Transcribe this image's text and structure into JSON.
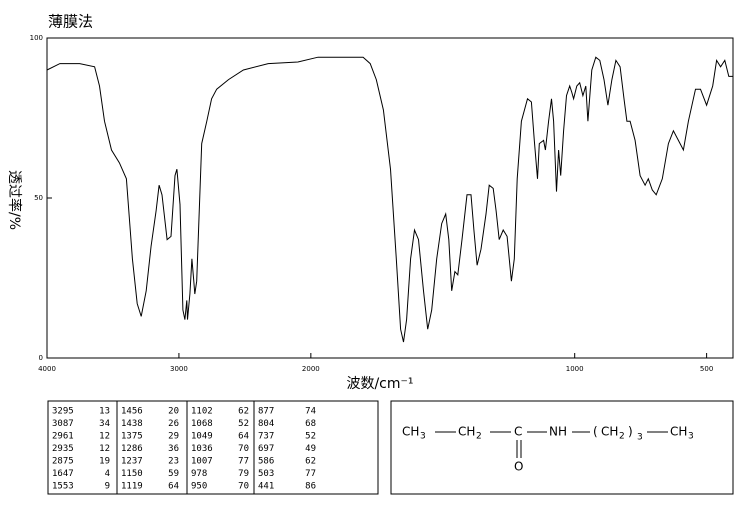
{
  "chart_data": {
    "type": "line",
    "title": "薄膜法",
    "x_label": "波数/cm⁻¹",
    "y_label": "透过率/%",
    "xlim": [
      4000,
      400
    ],
    "ylim": [
      0,
      100
    ],
    "xticks": [
      4000,
      3000,
      2000,
      1000,
      500
    ],
    "yticks": [
      0,
      50,
      100
    ],
    "x_scale_break": 2000,
    "x_scale_ratio_below_break": 2,
    "grid": false,
    "series": [
      {
        "name": "spectrum",
        "color": "#000000",
        "x": [
          4000,
          3902,
          3752,
          3639,
          3602,
          3564,
          3511,
          3451,
          3398,
          3353,
          3316,
          3286,
          3248,
          3211,
          3173,
          3150,
          3128,
          3090,
          3060,
          3030,
          3015,
          2992,
          2970,
          2955,
          2940,
          2935,
          2917,
          2902,
          2887,
          2880,
          2865,
          2827,
          2789,
          2752,
          2714,
          2624,
          2511,
          2323,
          2098,
          1973,
          1878,
          1802,
          1775,
          1752,
          1725,
          1698,
          1676,
          1660,
          1649,
          1637,
          1622,
          1607,
          1592,
          1573,
          1557,
          1542,
          1523,
          1504,
          1489,
          1477,
          1466,
          1454,
          1443,
          1427,
          1408,
          1393,
          1382,
          1370,
          1355,
          1336,
          1324,
          1309,
          1298,
          1286,
          1271,
          1256,
          1240,
          1229,
          1218,
          1202,
          1179,
          1164,
          1153,
          1141,
          1134,
          1118,
          1111,
          1099,
          1088,
          1080,
          1069,
          1061,
          1053,
          1042,
          1031,
          1019,
          1011,
          1004,
          992,
          981,
          969,
          958,
          950,
          935,
          920,
          905,
          889,
          874,
          859,
          844,
          828,
          813,
          802,
          790,
          771,
          752,
          733,
          721,
          706,
          691,
          668,
          645,
          626,
          607,
          588,
          569,
          542,
          523,
          500,
          477,
          462,
          447,
          431,
          416,
          400
        ],
        "values": [
          90,
          92,
          92,
          91,
          85,
          74,
          65,
          61,
          56,
          31,
          17,
          13,
          21,
          35,
          46,
          54,
          51,
          37,
          38,
          57,
          59,
          48,
          15,
          12,
          18,
          12,
          20,
          31,
          24,
          20,
          24,
          67,
          74,
          81,
          84,
          87,
          90,
          92,
          92.5,
          94,
          94,
          94,
          92,
          87,
          77.5,
          59,
          31,
          9,
          5,
          12,
          31,
          40,
          37,
          21,
          9,
          15,
          31,
          42,
          45,
          37,
          21,
          27,
          26,
          37,
          51,
          51,
          40,
          29,
          34,
          45,
          54,
          53,
          46,
          37,
          40,
          38,
          24,
          31,
          56,
          74,
          81,
          80,
          68,
          56,
          67,
          68,
          65,
          74,
          81,
          74,
          52,
          65,
          57,
          71,
          82,
          85,
          83,
          81,
          85,
          86,
          82,
          85,
          74,
          90,
          94,
          93,
          87,
          79,
          87,
          93,
          91,
          81,
          74,
          74,
          68,
          57,
          54,
          56,
          52.5,
          51,
          56,
          67,
          71,
          68,
          65,
          74,
          84,
          84,
          79,
          85,
          93,
          91,
          93,
          88,
          88
        ]
      }
    ]
  },
  "peak_table": [
    [
      [
        3295,
        13
      ],
      [
        3087,
        34
      ],
      [
        2961,
        12
      ],
      [
        2935,
        12
      ],
      [
        2875,
        19
      ],
      [
        1647,
        4
      ],
      [
        1553,
        9
      ]
    ],
    [
      [
        1456,
        20
      ],
      [
        1438,
        26
      ],
      [
        1375,
        29
      ],
      [
        1286,
        36
      ],
      [
        1237,
        23
      ],
      [
        1150,
        59
      ],
      [
        1119,
        64
      ]
    ],
    [
      [
        1102,
        62
      ],
      [
        1068,
        52
      ],
      [
        1049,
        64
      ],
      [
        1036,
        70
      ],
      [
        1007,
        77
      ],
      [
        978,
        79
      ],
      [
        950,
        70
      ]
    ],
    [
      [
        877,
        74
      ],
      [
        804,
        68
      ],
      [
        737,
        52
      ],
      [
        697,
        49
      ],
      [
        586,
        62
      ],
      [
        503,
        77
      ],
      [
        441,
        86
      ]
    ]
  ],
  "structure": {
    "atoms": [
      "CH",
      "3",
      "CH",
      "2",
      "C",
      "NH",
      "(",
      "CH",
      "2",
      ")",
      "3",
      "CH",
      "3",
      "O"
    ]
  }
}
